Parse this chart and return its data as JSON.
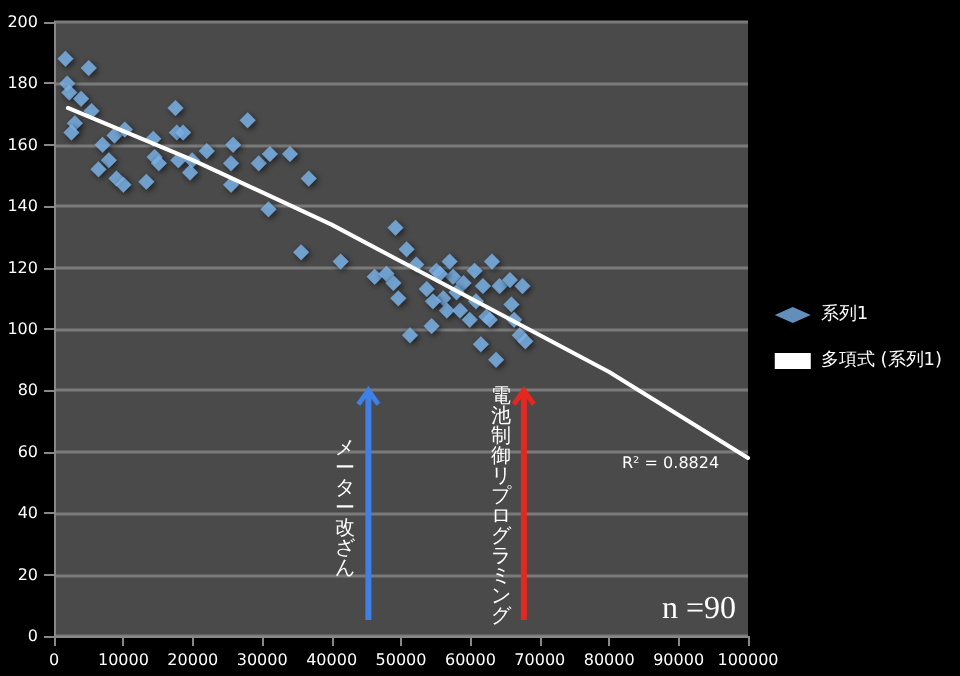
{
  "chart_data": {
    "type": "scatter",
    "x": [
      1650,
      1900,
      2200,
      3900,
      5000,
      3000,
      2500,
      5400,
      7000,
      7900,
      6400,
      8700,
      10200,
      9000,
      10000,
      13300,
      14300,
      14500,
      15100,
      17500,
      17700,
      18600,
      17900,
      19900,
      19600,
      22000,
      25500,
      25800,
      25500,
      27900,
      29500,
      31100,
      30900,
      34000,
      35600,
      36700,
      41300,
      46200,
      47900,
      48900,
      49200,
      49600,
      50800,
      52200,
      51300,
      54400,
      55100,
      57000,
      57500,
      53700,
      56100,
      56600,
      59000,
      58500,
      59900,
      60600,
      61800,
      62300,
      63100,
      64200,
      65700,
      67500,
      65900,
      66300,
      67100,
      67900,
      61500,
      63700,
      54600,
      60800,
      62800,
      58000,
      55600
    ],
    "series": [
      {
        "name": "系列1",
        "color": "#7ab3e8",
        "values": [
          188,
          180,
          177,
          175,
          185,
          167,
          164,
          171,
          160,
          155,
          152,
          163,
          165,
          149,
          147,
          148,
          162,
          156,
          154,
          172,
          164,
          164,
          155,
          155,
          151,
          158,
          154,
          160,
          147,
          168,
          154,
          157,
          139,
          157,
          125,
          149,
          122,
          117,
          118,
          115,
          133,
          110,
          126,
          121,
          98,
          101,
          119,
          122,
          117,
          113,
          110,
          106,
          115,
          106,
          103,
          119,
          114,
          104,
          122,
          114,
          116,
          114,
          108,
          103,
          98,
          96,
          95,
          90,
          109,
          109,
          103,
          112,
          118
        ]
      },
      {
        "name": "多項式 (系列1)",
        "color": "#ffffff",
        "type": "line",
        "marker": "none",
        "x": [
          2000,
          20000,
          40000,
          60000,
          80000,
          100000
        ],
        "values": [
          172,
          155,
          134,
          110,
          86,
          58
        ]
      }
    ],
    "xlim": [
      0,
      100000
    ],
    "xticks": [
      0,
      10000,
      20000,
      30000,
      40000,
      50000,
      60000,
      70000,
      80000,
      90000,
      100000
    ],
    "ylim": [
      0,
      200
    ],
    "yticks": [
      0,
      20,
      40,
      60,
      80,
      100,
      120,
      140,
      160,
      180,
      200
    ],
    "grid": "y",
    "legend": "right",
    "marker": "diamond",
    "annotations": [
      "メーター改ざん",
      "電池制御リプログラミング",
      "R² = 0.8824",
      "n =90"
    ]
  }
}
